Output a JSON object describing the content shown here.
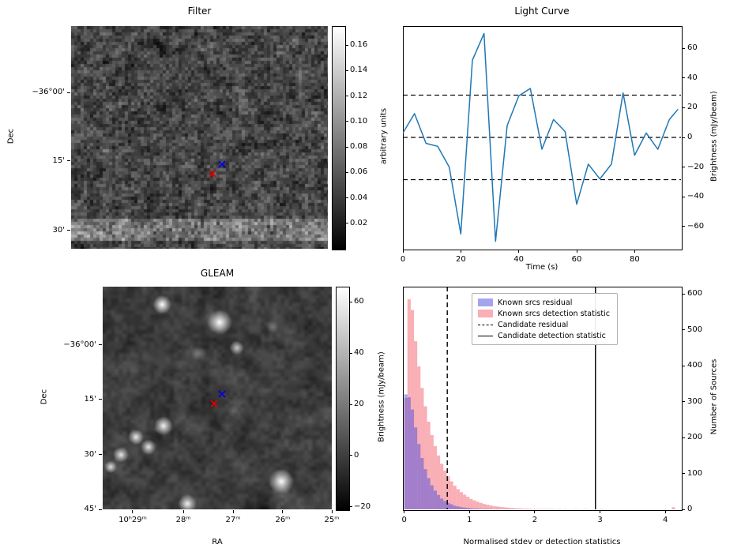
{
  "colors": {
    "line": "#1f77b4",
    "hist_blue": "#4b4be0",
    "hist_pink": "#f4606c",
    "marker_blue": "#0000e0",
    "marker_red": "#e00000",
    "threshold": "#000000"
  },
  "chart_data": [
    {
      "type": "image",
      "title": "Filter",
      "ylabel": "Dec",
      "yticks": [
        {
          "label": "−36°00'",
          "f": 0.298
        },
        {
          "label": "15'",
          "f": 0.606
        },
        {
          "label": "30'",
          "f": 0.918
        }
      ],
      "colorbar": {
        "label": "arbitrary units",
        "vmin": 0,
        "vmax": 0.175,
        "ticks": [
          {
            "label": "0.16",
            "v": 0.16
          },
          {
            "label": "0.14",
            "v": 0.14
          },
          {
            "label": "0.12",
            "v": 0.12
          },
          {
            "label": "0.10",
            "v": 0.1
          },
          {
            "label": "0.08",
            "v": 0.08
          },
          {
            "label": "0.06",
            "v": 0.06
          },
          {
            "label": "0.04",
            "v": 0.04
          },
          {
            "label": "0.02",
            "v": 0.02
          }
        ]
      },
      "markers": {
        "blue": [
          0.588,
          0.603
        ],
        "red": [
          0.551,
          0.645
        ]
      },
      "noise": {
        "seed": 20,
        "cell": 4,
        "base": 72,
        "amp": 62,
        "grain": 55,
        "band": {
          "from": 0.855,
          "to": 0.945,
          "boost": 55
        }
      }
    },
    {
      "type": "line",
      "title": "Light Curve",
      "xlabel": "Time (s)",
      "ylabel": "Brightness (mJy/beam)",
      "x": [
        0,
        4,
        8,
        12,
        16,
        20,
        24,
        28,
        32,
        36,
        40,
        44,
        48,
        52,
        56,
        60,
        64,
        68,
        72,
        76,
        80,
        84,
        88,
        92,
        95
      ],
      "y": [
        3,
        16,
        -4,
        -6,
        -20,
        -65,
        52,
        70,
        -70,
        8,
        28,
        33,
        -8,
        12,
        4,
        -45,
        -18,
        -28,
        -18,
        30,
        -12,
        3,
        -8,
        12,
        19
      ],
      "thresholds": [
        28.5,
        0,
        -28.5
      ],
      "xlim": [
        0,
        96
      ],
      "ylim": [
        -75,
        75
      ],
      "xticks": [
        0,
        20,
        40,
        60,
        80
      ],
      "yticks": [
        60,
        40,
        20,
        0,
        -20,
        -40,
        -60
      ]
    },
    {
      "type": "image",
      "title": "GLEAM",
      "xlabel": "RA",
      "ylabel": "Dec",
      "yticks": [
        {
          "label": "−36°00'",
          "f": 0.262
        },
        {
          "label": "15'",
          "f": 0.507
        },
        {
          "label": "30'",
          "f": 0.755
        },
        {
          "label": "45'",
          "f": 1.0
        }
      ],
      "xticks": [
        {
          "label": "10ʰ29ᵐ",
          "f": 0.131
        },
        {
          "label": "28ᵐ",
          "f": 0.352
        },
        {
          "label": "27ᵐ",
          "f": 0.569
        },
        {
          "label": "26ᵐ",
          "f": 0.786
        },
        {
          "label": "25ᵐ",
          "f": 1.0
        }
      ],
      "colorbar": {
        "label": "Brightness (mJy/beam)",
        "vmin": -21,
        "vmax": 66,
        "ticks": [
          {
            "label": "60",
            "v": 60
          },
          {
            "label": "40",
            "v": 40
          },
          {
            "label": "20",
            "v": 20
          },
          {
            "label": "0",
            "v": 0
          },
          {
            "label": "−20",
            "v": -20
          }
        ]
      },
      "markers": {
        "blue": [
          0.521,
          0.465
        ],
        "red": [
          0.486,
          0.507
        ]
      },
      "noise": {
        "seed": 5,
        "cell": 5,
        "base": 62,
        "amp": 55,
        "grain": 26
      },
      "blobs": [
        {
          "x": 0.26,
          "y": 0.08,
          "r": 6,
          "a": 1
        },
        {
          "x": 0.51,
          "y": 0.16,
          "r": 8,
          "a": 1
        },
        {
          "x": 0.585,
          "y": 0.275,
          "r": 4.5,
          "a": 0.75
        },
        {
          "x": 0.265,
          "y": 0.625,
          "r": 6,
          "a": 0.95
        },
        {
          "x": 0.145,
          "y": 0.675,
          "r": 5,
          "a": 0.9
        },
        {
          "x": 0.2,
          "y": 0.72,
          "r": 5,
          "a": 0.9
        },
        {
          "x": 0.08,
          "y": 0.755,
          "r": 5,
          "a": 0.9
        },
        {
          "x": 0.035,
          "y": 0.81,
          "r": 4,
          "a": 0.85
        },
        {
          "x": 0.37,
          "y": 0.975,
          "r": 6,
          "a": 0.95
        },
        {
          "x": 0.78,
          "y": 0.875,
          "r": 8,
          "a": 1
        },
        {
          "x": 0.42,
          "y": 0.3,
          "r": 5,
          "a": 0.3
        },
        {
          "x": 0.74,
          "y": 0.18,
          "r": 4,
          "a": 0.25
        },
        {
          "x": 0.88,
          "y": 0.48,
          "r": 4,
          "a": 0.2
        },
        {
          "x": 0.57,
          "y": 0.56,
          "r": 4,
          "a": 0.2
        }
      ]
    },
    {
      "type": "histogram",
      "xlabel": "Normalised stdev or detection statistics",
      "ylabel": "Number of Sources",
      "bin_start": 0,
      "bin_width": 0.05,
      "series": [
        {
          "name": "Known srcs residual",
          "values": [
            320,
            312,
            278,
            228,
            182,
            143,
            112,
            87,
            67,
            52,
            40,
            30,
            23,
            18,
            14,
            10,
            8,
            6,
            5,
            4,
            3,
            2,
            2,
            1,
            1,
            1,
            1,
            0,
            1,
            0,
            0,
            1,
            0,
            0,
            0,
            0,
            0,
            0,
            0,
            0,
            0,
            0,
            0,
            0,
            0,
            0,
            0,
            0,
            0,
            0,
            0,
            0,
            0,
            0,
            0,
            0,
            0,
            0,
            0,
            0,
            0,
            0,
            0,
            0,
            0,
            0,
            0,
            0,
            0,
            0,
            0,
            0,
            0,
            0,
            0,
            0,
            0,
            0,
            0,
            0,
            0,
            0,
            0,
            0
          ]
        },
        {
          "name": "Known srcs detection statistic",
          "values": [
            310,
            585,
            555,
            468,
            398,
            338,
            287,
            244,
            207,
            176,
            150,
            127,
            108,
            92,
            78,
            66,
            56,
            48,
            41,
            35,
            29,
            25,
            21,
            18,
            15,
            13,
            11,
            9,
            8,
            7,
            6,
            5,
            4,
            4,
            3,
            3,
            2,
            2,
            2,
            1,
            1,
            1,
            1,
            1,
            1,
            1,
            0,
            1,
            0,
            1,
            0,
            0,
            1,
            0,
            0,
            1,
            0,
            0,
            0,
            0,
            1,
            0,
            0,
            0,
            0,
            0,
            0,
            0,
            0,
            0,
            0,
            0,
            0,
            0,
            0,
            0,
            0,
            0,
            0,
            0,
            0,
            0,
            6,
            0
          ]
        }
      ],
      "candidate_residual": 0.66,
      "candidate_detection_statistic": 2.93,
      "legend": [
        "Known srcs residual",
        "Known srcs detection statistic",
        "Candidate residual",
        "Candidate detection statistic"
      ],
      "xlim": [
        -0.02,
        4.24
      ],
      "ylim": [
        0,
        620
      ],
      "xticks": [
        0,
        1,
        2,
        3,
        4
      ],
      "yticks": [
        0,
        100,
        200,
        300,
        400,
        500,
        600
      ]
    }
  ]
}
